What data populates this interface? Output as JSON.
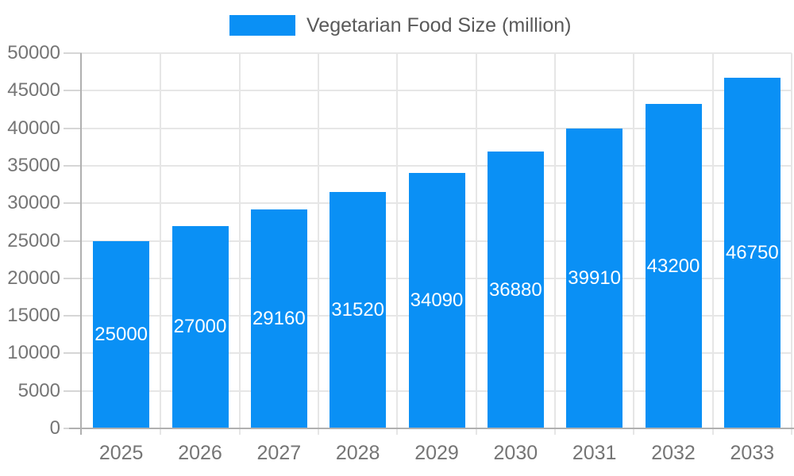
{
  "chart_data": {
    "type": "bar",
    "title": "",
    "series_name": "Vegetarian Food Size (million)",
    "categories": [
      "2025",
      "2026",
      "2027",
      "2028",
      "2029",
      "2030",
      "2031",
      "2032",
      "2033"
    ],
    "values": [
      25000,
      27000,
      29160,
      31520,
      34090,
      36880,
      39910,
      43200,
      46750
    ],
    "xlabel": "",
    "ylabel": "",
    "ylim": [
      0,
      50000
    ],
    "yticks": [
      0,
      5000,
      10000,
      15000,
      20000,
      25000,
      30000,
      35000,
      40000,
      45000,
      50000
    ],
    "grid": true,
    "bar_labels_visible": true,
    "legend_position": "top-center",
    "style": {
      "bar_color": "#0a90f5",
      "bar_label_color": "#ffffff",
      "grid_color": "#e6e6e6",
      "axis_color": "#b0b0b0",
      "tick_color": "#d6d6d6",
      "tick_label_color": "#757575",
      "legend_text_color": "#595959",
      "background_color": "#ffffff"
    }
  }
}
